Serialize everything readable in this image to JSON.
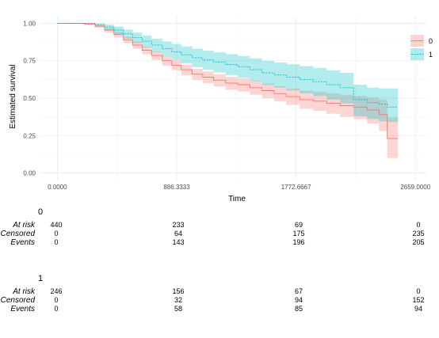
{
  "chart_data": {
    "type": "line",
    "title": "",
    "xlabel": "Time",
    "ylabel": "Estimated survival",
    "xlim": [
      -120,
      2740
    ],
    "ylim": [
      -0.05,
      1.05
    ],
    "x_ticks": [
      0,
      886.3333,
      1772.6667,
      2659
    ],
    "x_tick_labels": [
      "0.0000",
      "886.3333",
      "1772.6667",
      "2659.0000"
    ],
    "y_ticks": [
      0,
      0.25,
      0.5,
      0.75,
      1
    ],
    "y_tick_labels": [
      "0.00",
      "0.25",
      "0.50",
      "0.75",
      "1.00"
    ],
    "grid": true,
    "legend_position": "right",
    "series": [
      {
        "name": "0",
        "color": "#F8766D",
        "style": "solid",
        "x": [
          0,
          200,
          280,
          350,
          420,
          490,
          560,
          630,
          700,
          780,
          850,
          920,
          1000,
          1080,
          1160,
          1250,
          1340,
          1430,
          1520,
          1610,
          1700,
          1800,
          1900,
          2000,
          2100,
          2200,
          2300,
          2390,
          2450,
          2530
        ],
        "y": [
          1.0,
          0.995,
          0.98,
          0.955,
          0.925,
          0.89,
          0.855,
          0.82,
          0.785,
          0.75,
          0.72,
          0.69,
          0.66,
          0.64,
          0.62,
          0.6,
          0.59,
          0.57,
          0.55,
          0.53,
          0.51,
          0.49,
          0.48,
          0.465,
          0.45,
          0.44,
          0.42,
          0.39,
          0.23,
          0.23
        ],
        "lower": [
          1.0,
          0.99,
          0.972,
          0.94,
          0.905,
          0.868,
          0.83,
          0.793,
          0.755,
          0.718,
          0.686,
          0.654,
          0.622,
          0.6,
          0.578,
          0.556,
          0.544,
          0.522,
          0.5,
          0.478,
          0.455,
          0.43,
          0.415,
          0.396,
          0.375,
          0.36,
          0.33,
          0.28,
          0.1,
          0.1
        ],
        "upper": [
          1.0,
          1.0,
          0.988,
          0.968,
          0.942,
          0.91,
          0.878,
          0.845,
          0.812,
          0.78,
          0.752,
          0.724,
          0.696,
          0.678,
          0.66,
          0.642,
          0.634,
          0.616,
          0.598,
          0.58,
          0.563,
          0.548,
          0.542,
          0.532,
          0.522,
          0.515,
          0.505,
          0.49,
          0.37,
          0.37
        ]
      },
      {
        "name": "1",
        "color": "#00BFC4",
        "style": "dashed",
        "x": [
          0,
          200,
          280,
          350,
          420,
          490,
          560,
          630,
          700,
          780,
          850,
          920,
          1000,
          1080,
          1160,
          1250,
          1340,
          1430,
          1520,
          1610,
          1700,
          1800,
          1900,
          2000,
          2100,
          2200,
          2300,
          2390,
          2450,
          2530
        ],
        "y": [
          1.0,
          1.0,
          0.99,
          0.975,
          0.955,
          0.93,
          0.905,
          0.88,
          0.855,
          0.83,
          0.81,
          0.79,
          0.77,
          0.755,
          0.74,
          0.725,
          0.71,
          0.69,
          0.67,
          0.655,
          0.64,
          0.625,
          0.61,
          0.59,
          0.57,
          0.49,
          0.47,
          0.46,
          0.44,
          0.44
        ],
        "lower": [
          1.0,
          1.0,
          0.978,
          0.955,
          0.928,
          0.898,
          0.868,
          0.838,
          0.808,
          0.778,
          0.755,
          0.732,
          0.708,
          0.69,
          0.672,
          0.654,
          0.636,
          0.612,
          0.588,
          0.57,
          0.552,
          0.532,
          0.514,
          0.49,
          0.465,
          0.38,
          0.36,
          0.345,
          0.34,
          0.34
        ],
        "upper": [
          1.0,
          1.0,
          1.0,
          0.992,
          0.978,
          0.958,
          0.938,
          0.918,
          0.898,
          0.878,
          0.862,
          0.846,
          0.83,
          0.818,
          0.806,
          0.794,
          0.782,
          0.766,
          0.75,
          0.738,
          0.726,
          0.714,
          0.702,
          0.686,
          0.67,
          0.59,
          0.57,
          0.565,
          0.565,
          0.565
        ]
      }
    ]
  },
  "risk_tables": [
    {
      "title": "0",
      "rows": [
        {
          "label": "At risk",
          "values": [
            "440",
            "233",
            "69",
            "0"
          ]
        },
        {
          "label": "Censored",
          "values": [
            "0",
            "64",
            "175",
            "235"
          ]
        },
        {
          "label": "Events",
          "values": [
            "0",
            "143",
            "196",
            "205"
          ]
        }
      ]
    },
    {
      "title": "1",
      "rows": [
        {
          "label": "At risk",
          "values": [
            "246",
            "156",
            "67",
            "0"
          ]
        },
        {
          "label": "Censored",
          "values": [
            "0",
            "32",
            "94",
            "152"
          ]
        },
        {
          "label": "Events",
          "values": [
            "0",
            "58",
            "85",
            "94"
          ]
        }
      ]
    }
  ]
}
